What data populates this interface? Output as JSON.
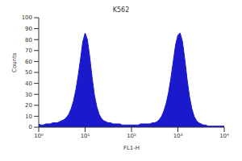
{
  "chart_data": {
    "type": "area",
    "title": "K562",
    "x_label": "FL1-H",
    "y_label": "Counts",
    "log": "x",
    "grid": false,
    "color": "#1a1acc",
    "x": [
      1,
      1.12,
      1.26,
      1.41,
      1.58,
      1.78,
      2,
      2.24,
      2.51,
      2.82,
      3.16,
      3.55,
      3.98,
      4.47,
      5.01,
      5.62,
      6.31,
      7.08,
      7.94,
      8.91,
      10,
      11.2,
      12.6,
      14.1,
      15.8,
      17.8,
      20,
      22.4,
      25.1,
      28.2,
      31.6,
      35.5,
      39.8,
      44.7,
      50.1,
      56.2,
      63.1,
      70.8,
      79.4,
      89.1,
      100,
      112,
      126,
      141,
      158,
      178,
      200,
      224,
      251,
      282,
      316,
      355,
      398,
      447,
      501,
      562,
      631,
      708,
      794,
      891,
      1000,
      1120,
      1260,
      1410,
      1580,
      1780,
      2000,
      2240,
      2510,
      2820,
      3160,
      3550,
      3980,
      4470,
      5010,
      5620,
      6310,
      7080,
      7940,
      8910,
      10000
    ],
    "values": [
      3,
      2,
      2,
      3,
      3,
      3,
      4,
      4,
      4,
      5,
      6,
      7,
      9,
      12,
      17,
      24,
      34,
      47,
      62,
      78,
      86,
      80,
      64,
      46,
      30,
      19,
      12,
      8,
      6,
      5,
      4,
      4,
      3,
      3,
      3,
      3,
      2,
      2,
      2,
      2,
      2,
      2,
      2,
      2,
      3,
      3,
      3,
      3,
      3,
      4,
      4,
      5,
      7,
      10,
      15,
      22,
      32,
      45,
      60,
      75,
      84,
      86,
      78,
      62,
      44,
      28,
      17,
      10,
      6,
      4,
      3,
      2,
      2,
      1,
      1,
      1,
      1,
      1,
      1,
      1,
      1
    ],
    "xlim": [
      1,
      10000
    ],
    "xticks": [
      {
        "value": 1,
        "label": "10⁰"
      },
      {
        "value": 10,
        "label": "10¹"
      },
      {
        "value": 100,
        "label": "10²"
      },
      {
        "value": 1000,
        "label": "10³"
      },
      {
        "value": 10000,
        "label": "10⁴"
      }
    ],
    "ylim": [
      0,
      100
    ],
    "yticks": [
      0,
      10,
      20,
      30,
      40,
      50,
      60,
      70,
      80,
      90,
      100
    ]
  }
}
